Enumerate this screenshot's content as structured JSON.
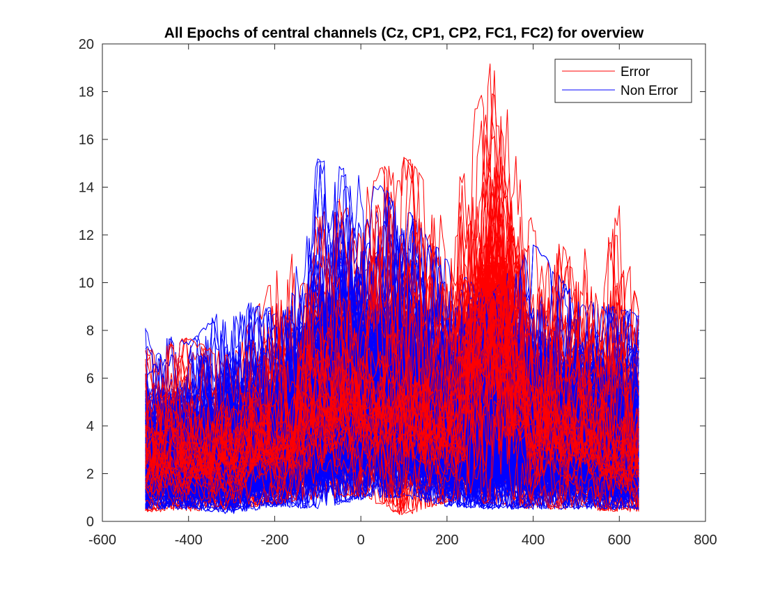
{
  "chart_data": {
    "type": "line",
    "title": "All Epochs of central channels (Cz, CP1, CP2, FC1, FC2) for overview",
    "xlabel": "",
    "ylabel": "",
    "xlim": [
      -600,
      800
    ],
    "ylim": [
      0,
      20
    ],
    "x_ticks": [
      -600,
      -400,
      -200,
      0,
      200,
      400,
      600,
      800
    ],
    "y_ticks": [
      0,
      2,
      4,
      6,
      8,
      10,
      12,
      14,
      16,
      18,
      20
    ],
    "x_tick_labels": [
      "-600",
      "-400",
      "-200",
      "0",
      "200",
      "400",
      "600",
      "800"
    ],
    "y_tick_labels": [
      "0",
      "2",
      "4",
      "6",
      "8",
      "10",
      "12",
      "14",
      "16",
      "18",
      "20"
    ],
    "grid": false,
    "legend_position": "top-right",
    "epoch_time_range": [
      -500,
      645
    ],
    "series": [
      {
        "name": "Error",
        "color": "#ff0000",
        "envelope": {
          "x": [
            -500,
            -400,
            -300,
            -200,
            -100,
            0,
            100,
            200,
            250,
            300,
            350,
            400,
            500,
            600,
            645
          ],
          "lower": [
            0.4,
            0.4,
            0.5,
            0.7,
            0.9,
            1.0,
            0.2,
            0.8,
            0.8,
            0.7,
            0.6,
            0.5,
            0.5,
            0.4,
            0.4
          ],
          "upper": [
            7.4,
            7.7,
            7.0,
            10.4,
            12.9,
            14.2,
            15.5,
            13.3,
            16.5,
            19.2,
            17.9,
            12.3,
            11.2,
            13.4,
            8.9
          ]
        },
        "typical": {
          "x": [
            -500,
            -400,
            -300,
            -200,
            -100,
            0,
            100,
            200,
            250,
            300,
            350,
            400,
            500,
            600,
            645
          ],
          "y": [
            2.4,
            2.3,
            2.6,
            3.1,
            4.0,
            4.6,
            4.8,
            3.8,
            6.0,
            8.6,
            6.2,
            3.6,
            3.0,
            2.8,
            2.6
          ]
        }
      },
      {
        "name": "Non Error",
        "color": "#0000ff",
        "envelope": {
          "x": [
            -500,
            -400,
            -300,
            -200,
            -100,
            0,
            100,
            200,
            300,
            400,
            500,
            600,
            645
          ],
          "lower": [
            0.5,
            0.5,
            0.3,
            0.6,
            0.5,
            0.9,
            1.0,
            0.6,
            0.5,
            0.5,
            0.5,
            0.5,
            0.5
          ],
          "upper": [
            8.2,
            7.5,
            9.4,
            8.9,
            15.2,
            14.7,
            13.3,
            11.0,
            9.5,
            11.8,
            9.4,
            9.0,
            8.8
          ]
        },
        "typical": {
          "x": [
            -500,
            -400,
            -300,
            -200,
            -100,
            0,
            100,
            200,
            300,
            400,
            500,
            600,
            645
          ],
          "y": [
            2.3,
            2.3,
            2.3,
            2.8,
            3.9,
            4.7,
            5.3,
            3.3,
            3.3,
            3.2,
            2.9,
            2.7,
            2.6
          ]
        }
      }
    ]
  }
}
